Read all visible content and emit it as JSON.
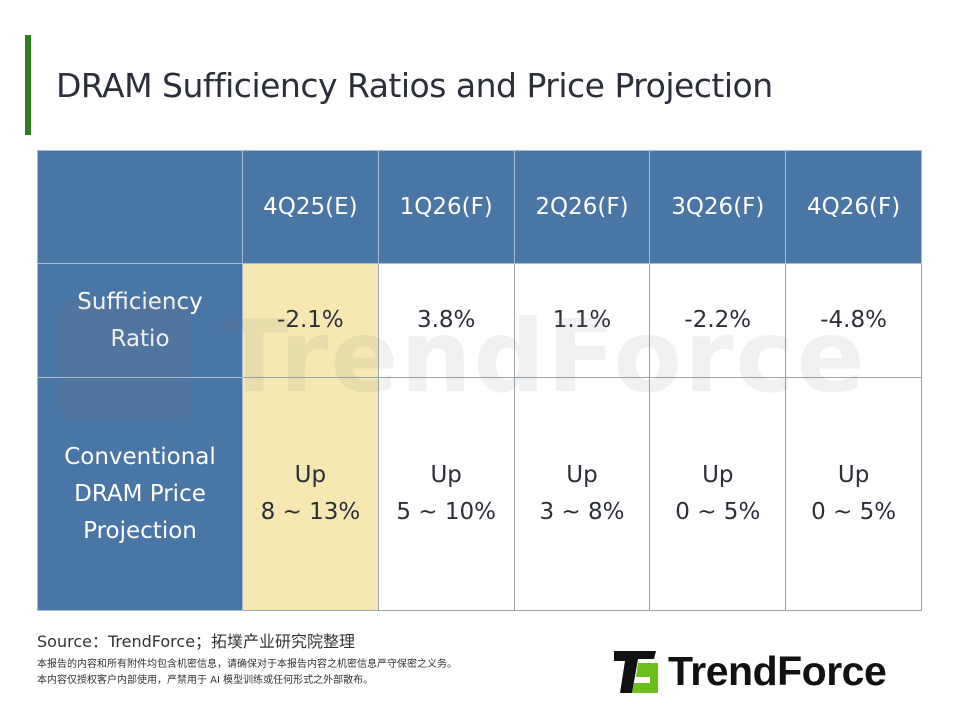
{
  "title": "DRAM Sufficiency Ratios and Price Projection",
  "colors": {
    "header": "#4a76a6",
    "highlight": "#f7e8b3",
    "accent": "#2e7d1e",
    "logo_green": "#6cbf1f"
  },
  "table": {
    "columns": [
      "",
      "4Q25(E)",
      "1Q26(F)",
      "2Q26(F)",
      "3Q26(F)",
      "4Q26(F)"
    ],
    "highlighted_column": "4Q25(E)",
    "rows": [
      {
        "label": "Sufficiency Ratio",
        "values": [
          "-2.1%",
          "3.8%",
          "1.1%",
          "-2.2%",
          "-4.8%"
        ]
      },
      {
        "label": "Conventional DRAM Price Projection",
        "values": [
          {
            "dir": "Up",
            "range": "8 ~ 13%"
          },
          {
            "dir": "Up",
            "range": "5 ~ 10%"
          },
          {
            "dir": "Up",
            "range": "3 ~ 8%"
          },
          {
            "dir": "Up",
            "range": "0 ~ 5%"
          },
          {
            "dir": "Up",
            "range": "0 ~ 5%"
          }
        ]
      }
    ]
  },
  "source": "Source：TrendForce；拓墣产业研究院整理",
  "disclaimer": [
    "本报告的内容和所有附件均包含机密信息，请确保对于本报告内容之机密信息严守保密之义务。",
    "本内容仅授权客户内部使用，严禁用于 AI 模型训练或任何形式之外部散布。"
  ],
  "logo": {
    "name": "TrendForce",
    "icon": "trendforce-logo-icon"
  }
}
